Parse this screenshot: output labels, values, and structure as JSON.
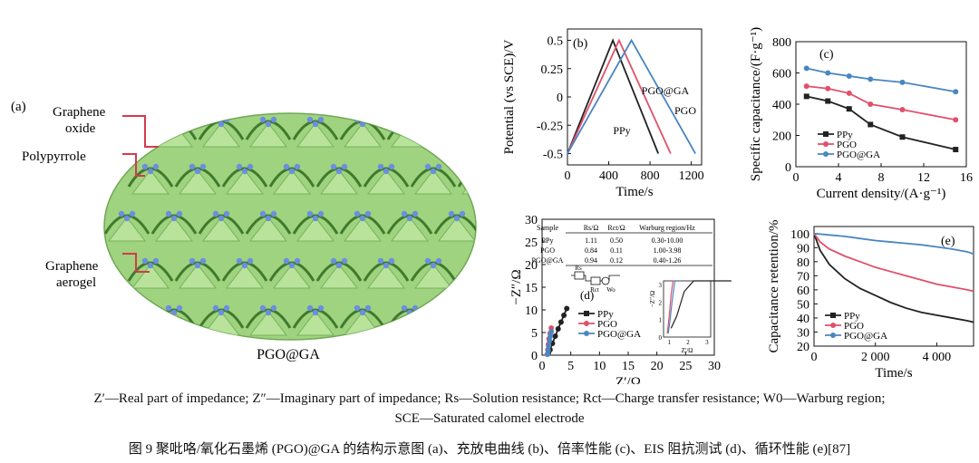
{
  "panel_a": {
    "label": "(a)",
    "labels": [
      "Graphene",
      "oxide",
      "Polypyrrole",
      "Graphene",
      "aerogel"
    ],
    "caption": "PGO@GA"
  },
  "notes_line1": "Z′—Real part of impedance; Z″—Imaginary part of impedance; Rs—Solution resistance; Rct—Charge transfer resistance; W0—Warburg region;",
  "notes_line2": "SCE—Saturated calomel electrode",
  "figure_caption": "图 9   聚吡咯/氧化石墨烯 (PGO)@GA 的结构示意图 (a)、充放电曲线 (b)、倍率性能 (c)、EIS 阻抗测试 (d)、循环性能 (e)[87]",
  "colors": {
    "ppy": "#222222",
    "pgo": "#e0506a",
    "pgoga": "#4a86c0",
    "aerogel": "#8cc870",
    "polypyrrole": "#6b8ee0"
  },
  "chart_data": [
    {
      "id": "b",
      "panel_label": "(b)",
      "type": "line",
      "xlabel": "Time/s",
      "ylabel": "Potential (vs SCE)/V",
      "xlim": [
        0,
        1300
      ],
      "ylim": [
        -0.6,
        0.6
      ],
      "xticks": [
        0,
        400,
        800,
        1200
      ],
      "yticks": [
        -0.5,
        -0.25,
        0,
        0.25,
        0.5
      ],
      "series": [
        {
          "name": "PPy",
          "x": [
            0,
            440,
            880
          ],
          "y": [
            -0.5,
            0.5,
            -0.5
          ]
        },
        {
          "name": "PGO",
          "x": [
            0,
            500,
            1000
          ],
          "y": [
            -0.5,
            0.5,
            -0.5
          ]
        },
        {
          "name": "PGO@GA",
          "x": [
            0,
            620,
            1240
          ],
          "y": [
            -0.5,
            0.5,
            -0.5
          ]
        }
      ]
    },
    {
      "id": "c",
      "panel_label": "(c)",
      "type": "line",
      "xlabel": "Current density/(A·g⁻¹)",
      "ylabel": "Specific capacitance/(F·g⁻¹)",
      "xlim": [
        0,
        16
      ],
      "ylim": [
        0,
        800
      ],
      "xticks": [
        0,
        4,
        8,
        12,
        16
      ],
      "yticks": [
        0,
        200,
        400,
        600,
        800
      ],
      "legend": [
        "PPy",
        "PGO",
        "PGO@GA"
      ],
      "series": [
        {
          "name": "PPy",
          "x": [
            1,
            3,
            5,
            7,
            10,
            15
          ],
          "y": [
            450,
            420,
            370,
            270,
            190,
            110
          ]
        },
        {
          "name": "PGO",
          "x": [
            1,
            3,
            5,
            7,
            10,
            15
          ],
          "y": [
            515,
            500,
            470,
            400,
            365,
            300
          ]
        },
        {
          "name": "PGO@GA",
          "x": [
            1,
            3,
            5,
            7,
            10,
            15
          ],
          "y": [
            630,
            600,
            580,
            560,
            540,
            480
          ]
        }
      ]
    },
    {
      "id": "d",
      "panel_label": "(d)",
      "type": "scatter",
      "xlabel": "Z′/Ω",
      "ylabel": "−Z″/Ω",
      "xlim": [
        0,
        30
      ],
      "ylim": [
        0,
        30
      ],
      "xticks": [
        0,
        5,
        10,
        15,
        20,
        25,
        30
      ],
      "yticks": [
        0,
        5,
        10,
        15,
        20,
        25,
        30
      ],
      "legend": [
        "PPy",
        "PGO",
        "PGO@GA"
      ],
      "table": {
        "headers": [
          "Sample",
          "Rs/Ω",
          "Rct/Ω",
          "Warburg region/Hz"
        ],
        "rows": [
          [
            "PPy",
            "1.11",
            "0.50",
            "0.30-10.00"
          ],
          [
            "PGO",
            "0.84",
            "0.11",
            "1.00-3.98"
          ],
          [
            "PGO@GA",
            "0.94",
            "0.12",
            "0.40-1.26"
          ]
        ]
      },
      "circuit_labels": [
        "Rs",
        "Rct",
        "Wo"
      ],
      "inset": {
        "xlabel": "Z′/Ω",
        "ylabel": "−Z″/Ω",
        "xticks": [
          1,
          2,
          3
        ],
        "yticks": [
          0,
          1,
          2,
          3
        ]
      },
      "series": [
        {
          "name": "PPy",
          "x": [
            1.1,
            1.4,
            1.8,
            2.3,
            2.8,
            3.3,
            3.8,
            4.3
          ],
          "y": [
            0.5,
            1.2,
            2.6,
            4.2,
            5.8,
            7.3,
            8.8,
            10.3
          ]
        },
        {
          "name": "PGO",
          "x": [
            0.9,
            1.0,
            1.1,
            1.2,
            1.4,
            1.6
          ],
          "y": [
            0.2,
            1.2,
            2.4,
            3.6,
            4.8,
            6.0
          ]
        },
        {
          "name": "PGO@GA",
          "x": [
            0.95,
            1.05,
            1.15,
            1.3,
            1.45,
            1.6
          ],
          "y": [
            0.2,
            1.0,
            2.0,
            3.2,
            4.2,
            5.2
          ]
        }
      ]
    },
    {
      "id": "e",
      "panel_label": "(e)",
      "type": "line",
      "xlabel": "Time/s",
      "ylabel": "Capacitance retention/%",
      "xlim": [
        0,
        5200
      ],
      "ylim": [
        20,
        105
      ],
      "xticks": [
        0,
        2000,
        4000
      ],
      "xtick_labels": [
        "0",
        "2 000",
        "4 000"
      ],
      "yticks": [
        20,
        30,
        40,
        50,
        60,
        70,
        80,
        90,
        100
      ],
      "legend": [
        "PPy",
        "PGO",
        "PGO@GA"
      ],
      "series": [
        {
          "name": "PPy",
          "x": [
            0,
            200,
            500,
            1000,
            1500,
            2000,
            2500,
            3000,
            3500,
            4000,
            4500,
            5000,
            5200
          ],
          "y": [
            100,
            88,
            78,
            68,
            61,
            56,
            51,
            47,
            44,
            42,
            40,
            38,
            37
          ]
        },
        {
          "name": "PGO",
          "x": [
            0,
            200,
            500,
            1000,
            1500,
            2000,
            2500,
            3000,
            3500,
            4000,
            4500,
            5000,
            5200
          ],
          "y": [
            100,
            94,
            89,
            84,
            80,
            76,
            73,
            70,
            67,
            64,
            62,
            60,
            59
          ]
        },
        {
          "name": "PGO@GA",
          "x": [
            0,
            500,
            1000,
            1500,
            2000,
            2500,
            3000,
            3500,
            4000,
            4500,
            5000,
            5200
          ],
          "y": [
            100,
            99,
            98,
            96.5,
            95,
            94,
            93,
            92,
            90.5,
            89,
            87,
            85.5
          ]
        }
      ]
    }
  ]
}
